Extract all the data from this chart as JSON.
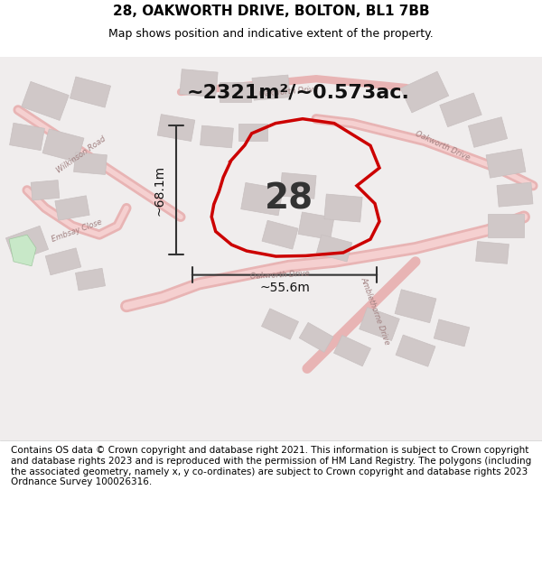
{
  "title": "28, OAKWORTH DRIVE, BOLTON, BL1 7BB",
  "subtitle": "Map shows position and indicative extent of the property.",
  "area_text": "~2321m²/~0.573ac.",
  "label_28": "28",
  "dim_height": "~68.1m",
  "dim_width": "~55.6m",
  "footer": "Contains OS data © Crown copyright and database right 2021. This information is subject to Crown copyright and database rights 2023 and is reproduced with the permission of HM Land Registry. The polygons (including the associated geometry, namely x, y co-ordinates) are subject to Crown copyright and database rights 2023 Ordnance Survey 100026316.",
  "bg_color": "#f5f0f0",
  "map_bg": "#f0eaea",
  "road_color": "#e8b0b0",
  "building_color": "#d8d0d0",
  "boundary_color": "#cc0000",
  "title_color": "#000000",
  "footer_color": "#000000",
  "dim_line_color": "#333333",
  "footer_fontsize": 7.5,
  "title_fontsize": 11,
  "subtitle_fontsize": 9
}
